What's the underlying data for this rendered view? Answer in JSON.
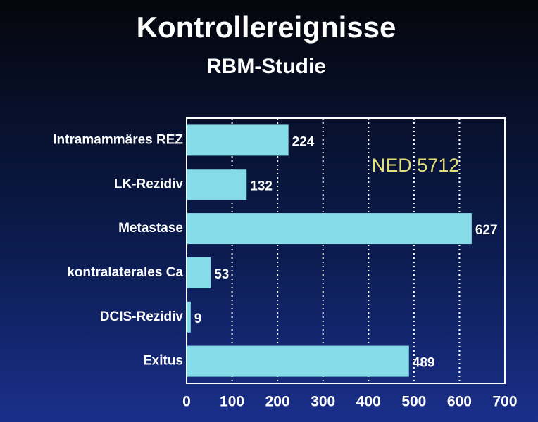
{
  "chart_data": {
    "type": "bar",
    "orientation": "horizontal",
    "title": "Kontrollereignisse",
    "subtitle": "RBM-Studie",
    "categories": [
      "Intramammäres REZ",
      "LK-Rezidiv",
      "Metastase",
      "kontralaterales Ca",
      "DCIS-Rezidiv",
      "Exitus"
    ],
    "values": [
      224,
      132,
      627,
      53,
      9,
      489
    ],
    "color": "#86dbe8",
    "xlim": [
      0,
      700
    ],
    "xticks": [
      0,
      100,
      200,
      300,
      400,
      500,
      600,
      700
    ],
    "grid": true,
    "annotation": "NED 5712",
    "annotation_color": "#e6df78"
  }
}
